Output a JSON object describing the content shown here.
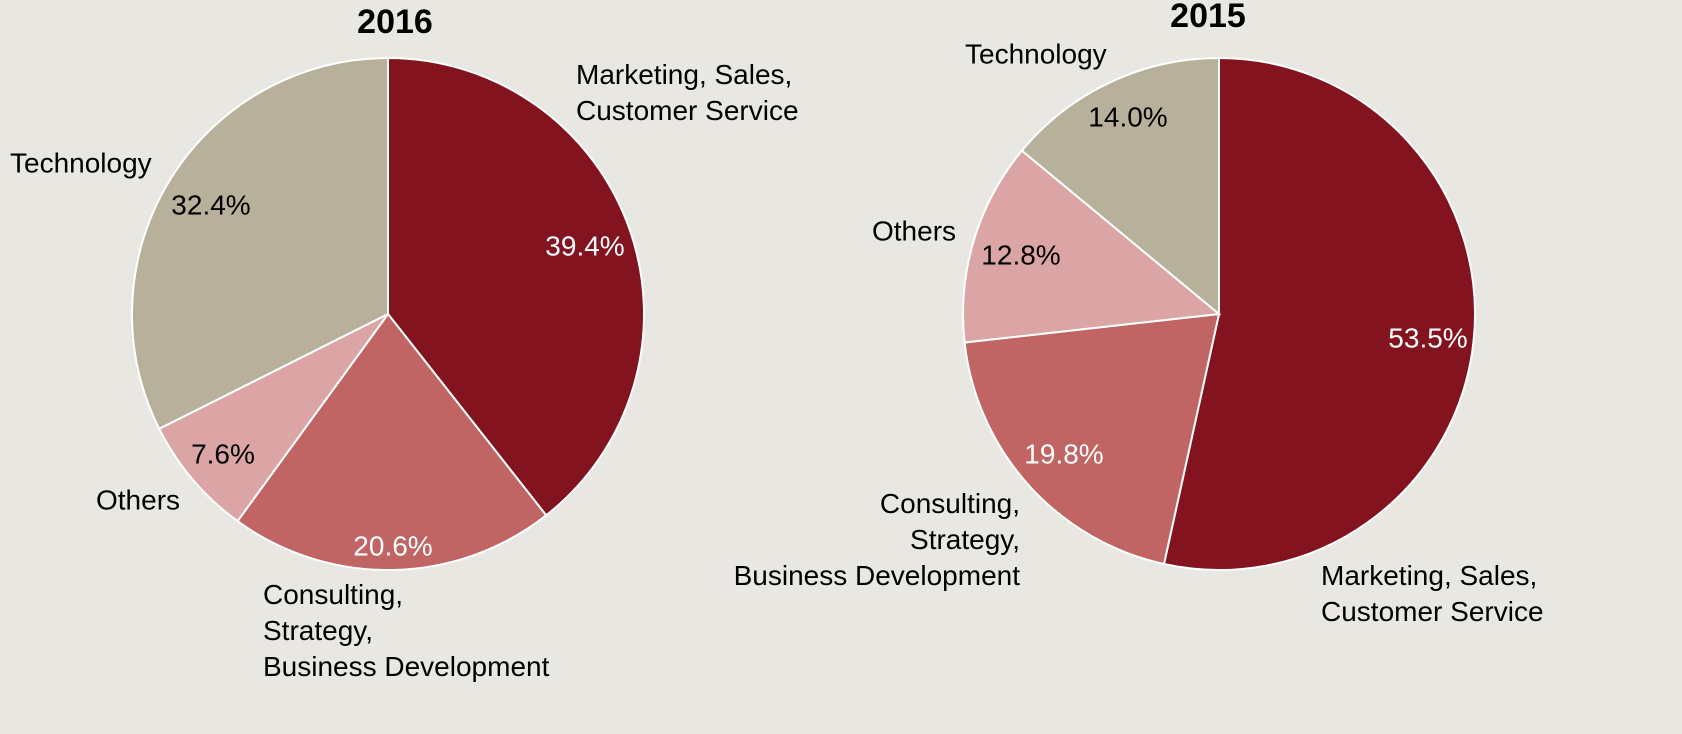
{
  "chart_data": [
    {
      "type": "pie",
      "title": "2016",
      "categories": [
        "Marketing, Sales,\nCustomer Service",
        "Consulting,\nStrategy,\nBusiness Development",
        "Others",
        "Technology"
      ],
      "values": [
        39.4,
        20.6,
        7.6,
        32.4
      ],
      "value_labels": [
        "39.4%",
        "20.6%",
        "7.6%",
        "32.4%"
      ],
      "colors": [
        "#82131f",
        "#c06464",
        "#dba5a5",
        "#b7b09a"
      ]
    },
    {
      "type": "pie",
      "title": "2015",
      "categories": [
        "Marketing, Sales,\nCustomer Service",
        "Consulting,\nStrategy,\nBusiness Development",
        "Others",
        "Technology"
      ],
      "values": [
        53.5,
        19.8,
        12.8,
        14.0
      ],
      "value_labels": [
        "53.5%",
        "19.8%",
        "12.8%",
        "14.0%"
      ],
      "colors": [
        "#82131f",
        "#c06464",
        "#dba5a5",
        "#b7b09a"
      ]
    }
  ]
}
